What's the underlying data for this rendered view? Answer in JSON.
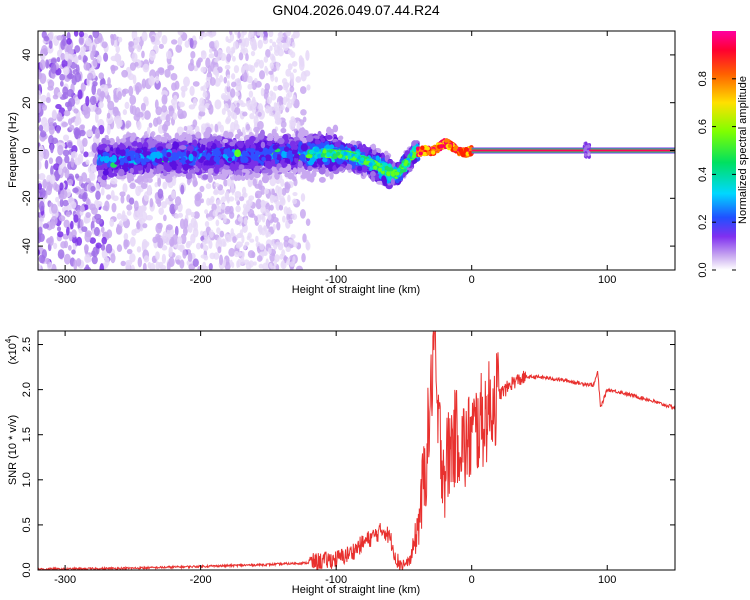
{
  "title": "GN04.2026.049.07.44.R24",
  "colors": {
    "snr_line": "#e8302e",
    "axis": "#000000",
    "spectrum_base": "#7a3cf0",
    "colormap": [
      "#ffffff",
      "#e6d8f8",
      "#c8a8f0",
      "#a070e8",
      "#7a30e8",
      "#5a10e0",
      "#3050ff",
      "#00b0ff",
      "#00e0d0",
      "#20e060",
      "#60ff20",
      "#c0ff00",
      "#ffe000",
      "#ff8000",
      "#ff2000",
      "#ff0060",
      "#ff00a0"
    ]
  },
  "chart_data": [
    {
      "type": "heatmap",
      "title": "GN04.2026.049.07.44.R24",
      "xlabel": "Height of straight line (km)",
      "ylabel": "Frequency (Hz)",
      "xlim": [
        -320,
        150
      ],
      "ylim": [
        -50,
        50
      ],
      "x_ticks": [
        -300,
        -200,
        -100,
        0,
        100
      ],
      "x_tick_labels": [
        "-300",
        "-200",
        "-100",
        "0",
        "100"
      ],
      "y_ticks": [
        -40,
        -20,
        0,
        20,
        40
      ],
      "y_tick_labels": [
        "-40",
        "-20",
        "0",
        "20",
        "40"
      ],
      "ridge": {
        "x": [
          -270,
          -240,
          -200,
          -170,
          -140,
          -110,
          -90,
          -75,
          -65,
          -55,
          -48,
          -42,
          -35,
          -28,
          -20,
          -15,
          -10,
          -5,
          0,
          20,
          60,
          85,
          100,
          130,
          150
        ],
        "y": [
          -4,
          -3,
          -2,
          -2,
          -1.5,
          -1,
          -2,
          -5,
          -8,
          -10,
          -5,
          -1,
          0,
          0,
          3,
          2,
          0,
          -1,
          0,
          0,
          0,
          0,
          0,
          0,
          0
        ]
      },
      "colorbar": {
        "label": "Normalized spectral amplitude",
        "range": [
          0,
          1
        ],
        "ticks": [
          0.0,
          0.2,
          0.4,
          0.6,
          0.8
        ],
        "tick_labels": [
          "0.0",
          "0.2",
          "0.4",
          "0.6",
          "0.8"
        ]
      }
    },
    {
      "type": "line",
      "xlabel": "Height of straight line (km)",
      "ylabel": "SNR (10 * v/v)",
      "scale_label": "(x10",
      "scale_exponent": "4",
      "xlim": [
        -320,
        150
      ],
      "ylim": [
        0,
        2.65
      ],
      "x_ticks": [
        -300,
        -200,
        -100,
        0,
        100
      ],
      "x_tick_labels": [
        "-300",
        "-200",
        "-100",
        "0",
        "100"
      ],
      "y_ticks": [
        0.0,
        0.5,
        1.0,
        1.5,
        2.0,
        2.5
      ],
      "y_tick_labels": [
        "0.0",
        "0.5",
        "1.0",
        "1.5",
        "2.0",
        "2.5"
      ],
      "series": [
        {
          "x": [
            -320,
            -300,
            -250,
            -200,
            -150,
            -120,
            -100,
            -90,
            -80,
            -70,
            -65,
            -60,
            -55,
            -50,
            -45,
            -40,
            -35,
            -30,
            -28,
            -25,
            -20,
            -15,
            -10,
            -5,
            0,
            5,
            10,
            15,
            20,
            25,
            30,
            40,
            50,
            60,
            70,
            80,
            90,
            93,
            95,
            100,
            110,
            120,
            130,
            140,
            150
          ],
          "y": [
            0.01,
            0.01,
            0.02,
            0.04,
            0.06,
            0.08,
            0.12,
            0.18,
            0.3,
            0.4,
            0.45,
            0.35,
            0.1,
            0.05,
            0.12,
            0.45,
            1.0,
            1.9,
            2.6,
            1.6,
            1.1,
            1.4,
            1.5,
            1.35,
            1.5,
            1.6,
            1.7,
            1.85,
            1.95,
            2.0,
            2.08,
            2.14,
            2.14,
            2.12,
            2.1,
            2.07,
            2.05,
            2.2,
            1.8,
            2.0,
            1.97,
            1.93,
            1.89,
            1.84,
            1.8
          ]
        }
      ]
    }
  ]
}
